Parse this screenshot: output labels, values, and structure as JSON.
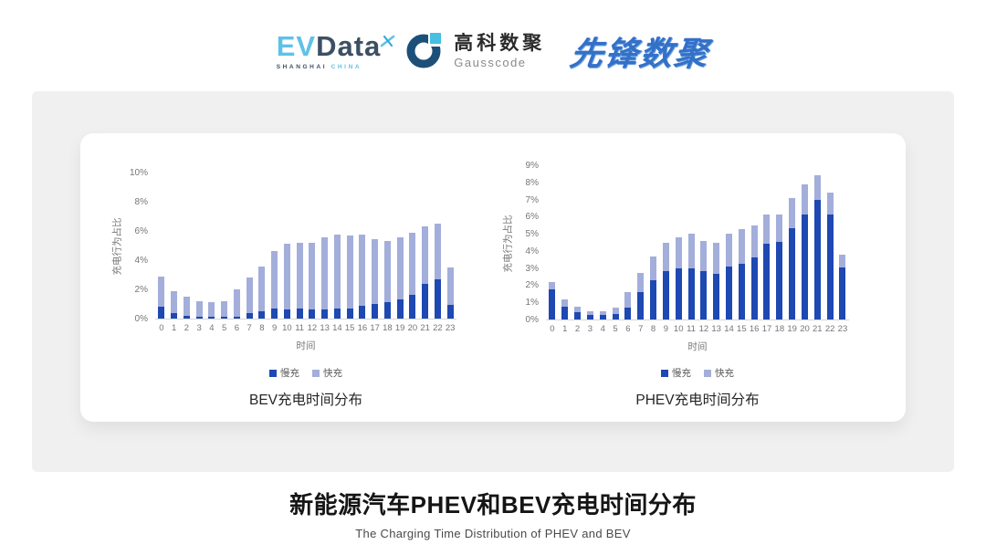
{
  "header": {
    "evdata": {
      "ev": "EV",
      "data": "Data",
      "sub_dark": "SHANGHAI",
      "sub_light": "CHINA"
    },
    "gausscode": {
      "cn": "高科数聚",
      "en": "Gausscode"
    },
    "pioneer": {
      "text": "先锋数聚"
    }
  },
  "footer": {
    "title_cn": "新能源汽车PHEV和BEV充电时间分布",
    "title_en": "The Charging Time Distribution of PHEV and BEV"
  },
  "colors": {
    "slow_charge": "#1e48b2",
    "fast_charge": "#a3aeda",
    "axis_text": "#757575",
    "panel_gray": "#f0f0f1",
    "evdata_blue": "#5ec2e7",
    "evdata_dark": "#3d4f63",
    "gauss_navy": "#1d5078",
    "gauss_cyan": "#45c0e0",
    "pioneer_blue": "#3370c8"
  },
  "chart_data": [
    {
      "type": "bar",
      "stacked": true,
      "title": "BEV充电时间分布",
      "xlabel": "时间",
      "ylabel": "充电行为占比",
      "ylim": [
        0,
        10
      ],
      "ytick_step": 2,
      "ytick_labels": [
        "0%",
        "2%",
        "4%",
        "6%",
        "8%",
        "10%"
      ],
      "grid": false,
      "legend_position": "bottom",
      "categories": [
        "0",
        "1",
        "2",
        "3",
        "4",
        "5",
        "6",
        "7",
        "8",
        "9",
        "10",
        "11",
        "12",
        "13",
        "14",
        "15",
        "16",
        "17",
        "18",
        "19",
        "20",
        "21",
        "22",
        "23"
      ],
      "series": [
        {
          "name": "慢充",
          "color": "#1e48b2",
          "values": [
            0.8,
            0.35,
            0.2,
            0.1,
            0.1,
            0.1,
            0.15,
            0.35,
            0.5,
            0.7,
            0.65,
            0.7,
            0.6,
            0.6,
            0.7,
            0.7,
            0.85,
            1.0,
            1.1,
            1.3,
            1.6,
            2.35,
            2.7,
            0.95
          ]
        },
        {
          "name": "快充",
          "color": "#a3aeda",
          "values": [
            2.1,
            1.55,
            1.3,
            1.1,
            1.0,
            1.1,
            1.85,
            2.45,
            3.05,
            3.9,
            4.5,
            4.5,
            4.6,
            4.95,
            5.05,
            5.0,
            4.9,
            4.45,
            4.2,
            4.25,
            4.25,
            3.95,
            3.8,
            2.55
          ]
        }
      ]
    },
    {
      "type": "bar",
      "stacked": true,
      "title": "PHEV充电时间分布",
      "xlabel": "时间",
      "ylabel": "充电行为占比",
      "ylim": [
        0,
        9
      ],
      "ytick_step": 1,
      "ytick_labels": [
        "0%",
        "1%",
        "2%",
        "3%",
        "4%",
        "5%",
        "6%",
        "7%",
        "8%",
        "9%"
      ],
      "grid": false,
      "legend_position": "bottom",
      "categories": [
        "0",
        "1",
        "2",
        "3",
        "4",
        "5",
        "6",
        "7",
        "8",
        "9",
        "10",
        "11",
        "12",
        "13",
        "14",
        "15",
        "16",
        "17",
        "18",
        "19",
        "20",
        "21",
        "22",
        "23"
      ],
      "series": [
        {
          "name": "慢充",
          "color": "#1e48b2",
          "values": [
            1.75,
            0.75,
            0.45,
            0.25,
            0.25,
            0.3,
            0.7,
            1.6,
            2.3,
            2.8,
            3.0,
            3.0,
            2.8,
            2.65,
            3.1,
            3.25,
            3.6,
            4.4,
            4.55,
            5.35,
            6.15,
            7.0,
            6.1,
            3.05
          ]
        },
        {
          "name": "快充",
          "color": "#a3aeda",
          "values": [
            0.45,
            0.4,
            0.3,
            0.25,
            0.25,
            0.4,
            0.9,
            1.1,
            1.35,
            1.7,
            1.8,
            2.0,
            1.8,
            1.85,
            1.9,
            2.0,
            1.9,
            1.7,
            1.55,
            1.75,
            1.75,
            1.4,
            1.3,
            0.75
          ]
        }
      ]
    }
  ]
}
